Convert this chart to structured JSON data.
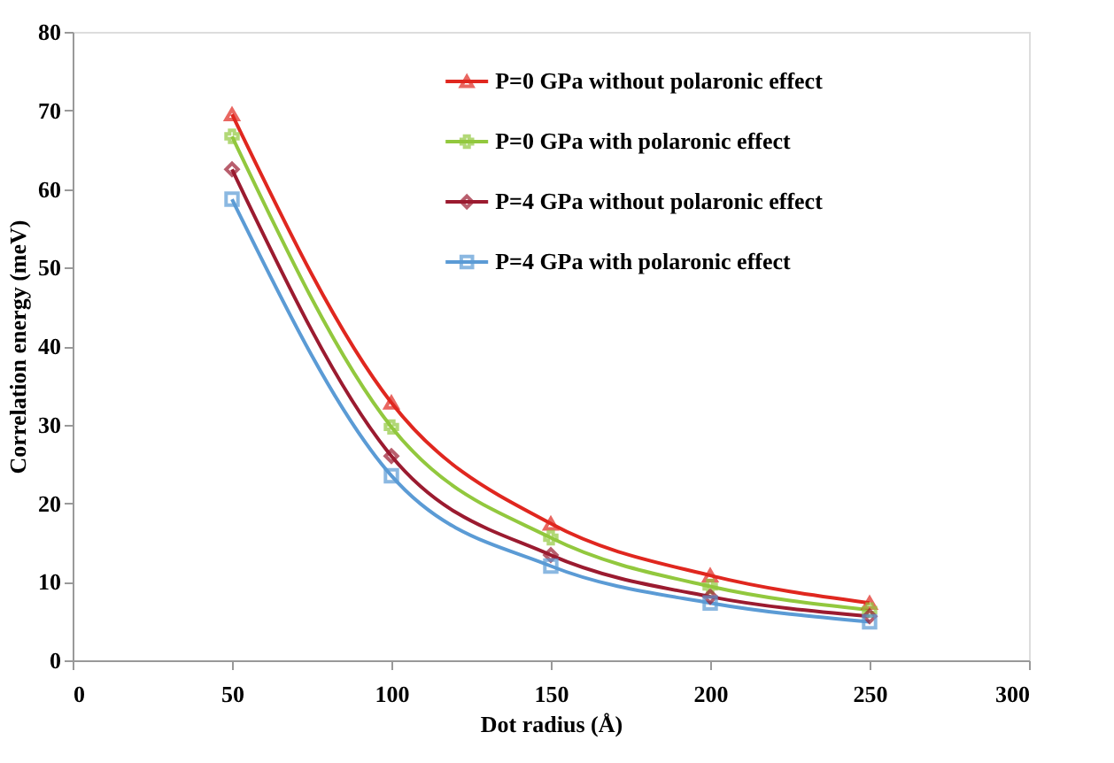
{
  "chart_data": {
    "type": "line",
    "xlabel": "Dot radius (Å)",
    "ylabel": "Correlation energy (meV)",
    "x": [
      50,
      100,
      150,
      200,
      250
    ],
    "series": [
      {
        "name": "P=0 GPa without polaronic effect",
        "color": "#e0271f",
        "marker": "triangle",
        "values": [
          69.5,
          32.8,
          17.4,
          10.8,
          7.3
        ]
      },
      {
        "name": "P=0 GPa with polaronic effect",
        "color": "#92c83e",
        "marker": "cross",
        "values": [
          66.7,
          29.7,
          15.6,
          9.4,
          6.4
        ]
      },
      {
        "name": "P=4 GPa without polaronic effect",
        "color": "#9b1b30",
        "marker": "diamond",
        "values": [
          62.5,
          26.0,
          13.4,
          8.1,
          5.6
        ]
      },
      {
        "name": "P=4 GPa with polaronic effect",
        "color": "#5b9bd5",
        "marker": "square",
        "values": [
          58.7,
          23.5,
          12.0,
          7.3,
          4.9
        ]
      }
    ],
    "xlim": [
      0,
      300
    ],
    "xticks": [
      0,
      50,
      100,
      150,
      200,
      250,
      300
    ],
    "ylim": [
      0,
      80
    ],
    "yticks": [
      0,
      10,
      20,
      30,
      40,
      50,
      60,
      70,
      80
    ],
    "grid": false,
    "legend": "top right",
    "line_style": "solid"
  }
}
